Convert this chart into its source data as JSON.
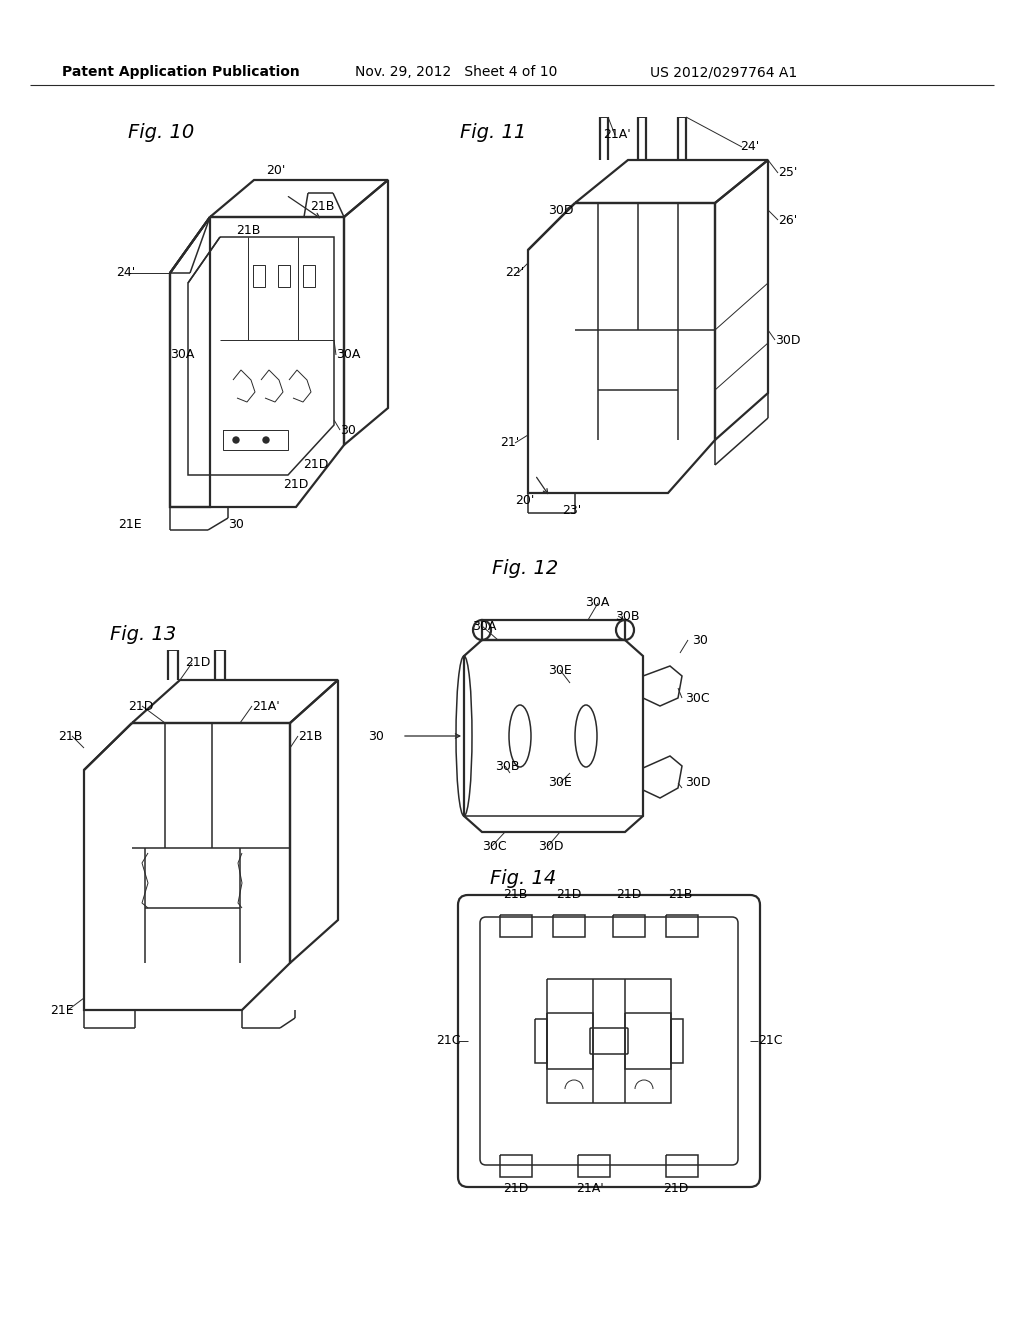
{
  "bg_color": "#ffffff",
  "line_color": "#2a2a2a",
  "text_color": "#000000",
  "header_left": "Patent Application Publication",
  "header_mid": "Nov. 29, 2012   Sheet 4 of 10",
  "header_right": "US 2012/0297764 A1",
  "fig10_label": "Fig. 10",
  "fig11_label": "Fig. 11",
  "fig12_label": "Fig. 12",
  "fig13_label": "Fig. 13",
  "fig14_label": "Fig. 14",
  "annotation_fs": 9,
  "figlabel_fs": 14,
  "header_fs": 10
}
